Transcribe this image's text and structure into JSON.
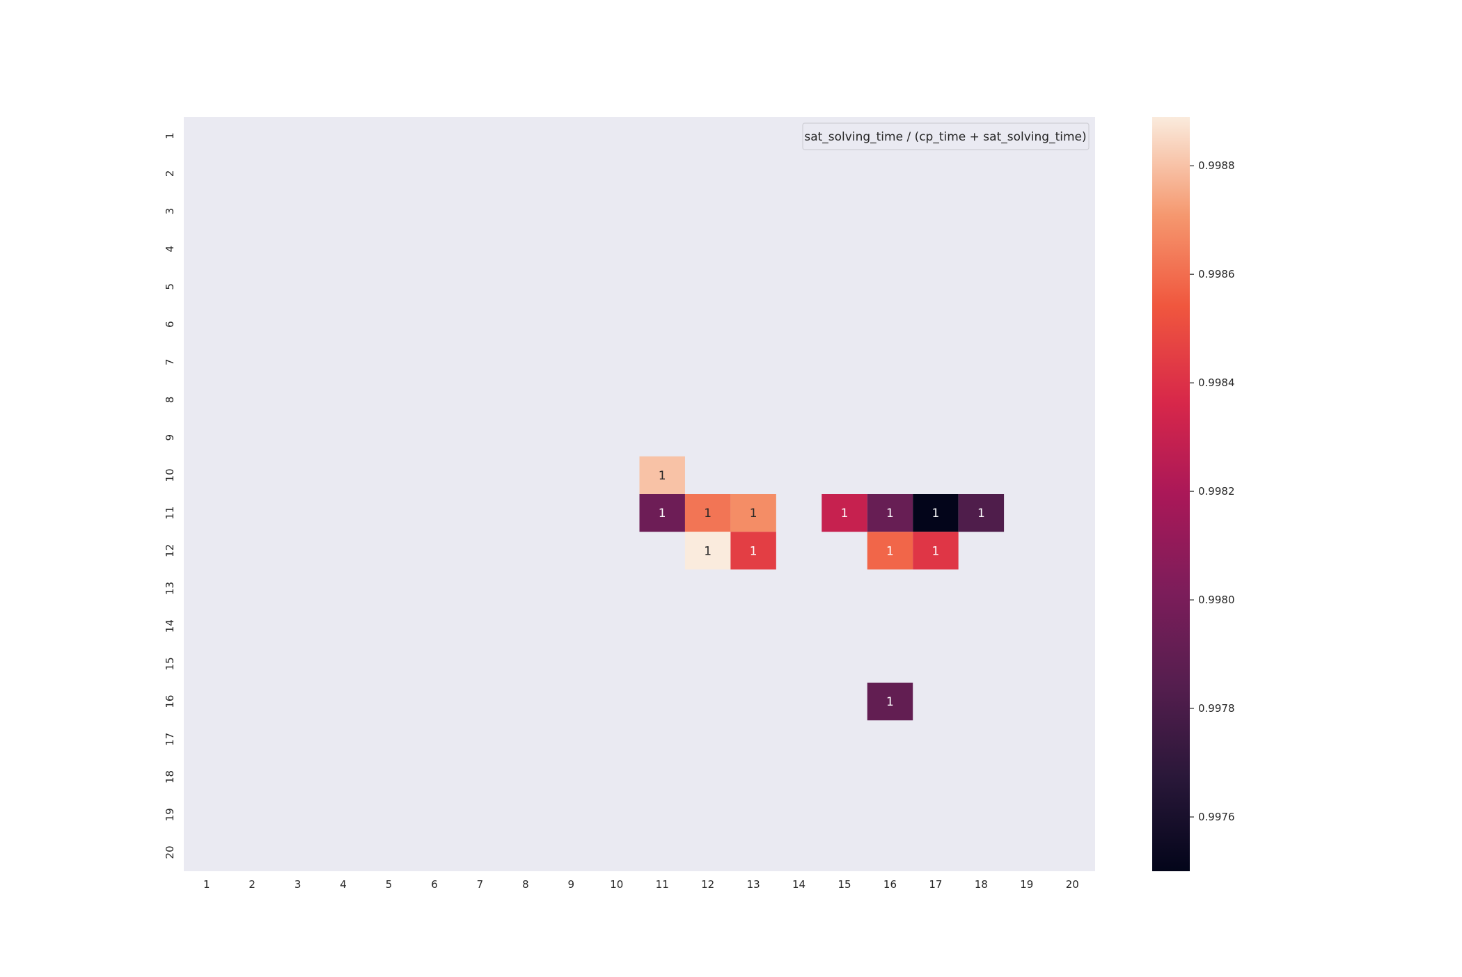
{
  "chart_data": {
    "type": "heatmap",
    "title": "",
    "xlabel": "",
    "ylabel": "",
    "x_categories": [
      "1",
      "2",
      "3",
      "4",
      "5",
      "6",
      "7",
      "8",
      "9",
      "10",
      "11",
      "12",
      "13",
      "14",
      "15",
      "16",
      "17",
      "18",
      "19",
      "20"
    ],
    "y_categories": [
      "1",
      "2",
      "3",
      "4",
      "5",
      "6",
      "7",
      "8",
      "9",
      "10",
      "11",
      "12",
      "13",
      "14",
      "15",
      "16",
      "17",
      "18",
      "19",
      "20"
    ],
    "background_color": "#eaeaf2",
    "legend": {
      "text": "sat_solving_time / (cp_time + sat_solving_time)",
      "placement": "top-right"
    },
    "colorbar": {
      "colormap": "rocket",
      "vmin": 0.9975,
      "vmax": 0.99889,
      "ticks": [
        0.9976,
        0.9978,
        0.998,
        0.9982,
        0.9984,
        0.9986,
        0.9988
      ],
      "tick_labels": [
        "0.9976",
        "0.9978",
        "0.9980",
        "0.9982",
        "0.9984",
        "0.9986",
        "0.9988"
      ]
    },
    "cells": [
      {
        "x": "11",
        "y": "10",
        "value": 0.9988,
        "label": "1"
      },
      {
        "x": "11",
        "y": "11",
        "value": 0.99795,
        "label": "1"
      },
      {
        "x": "12",
        "y": "11",
        "value": 0.99862,
        "label": "1"
      },
      {
        "x": "13",
        "y": "11",
        "value": 0.99868,
        "label": "1"
      },
      {
        "x": "15",
        "y": "11",
        "value": 0.9983,
        "label": "1"
      },
      {
        "x": "16",
        "y": "11",
        "value": 0.99792,
        "label": "1"
      },
      {
        "x": "17",
        "y": "11",
        "value": 0.9975,
        "label": "1"
      },
      {
        "x": "18",
        "y": "11",
        "value": 0.99782,
        "label": "1"
      },
      {
        "x": "12",
        "y": "12",
        "value": 0.99889,
        "label": "1"
      },
      {
        "x": "13",
        "y": "12",
        "value": 0.99845,
        "label": "1"
      },
      {
        "x": "16",
        "y": "12",
        "value": 0.99858,
        "label": "1"
      },
      {
        "x": "17",
        "y": "12",
        "value": 0.99842,
        "label": "1"
      },
      {
        "x": "16",
        "y": "16",
        "value": 0.9979,
        "label": "1"
      }
    ]
  }
}
